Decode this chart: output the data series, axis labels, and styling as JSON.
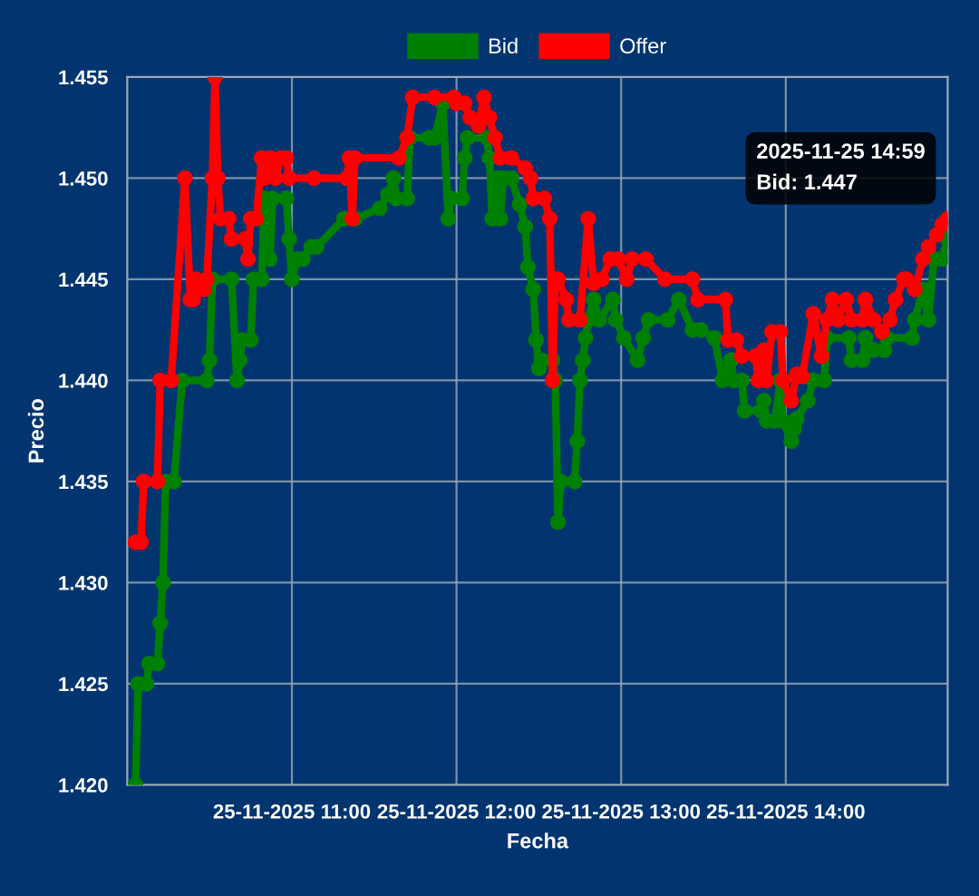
{
  "chart_data": {
    "type": "line",
    "xlabel": "Fecha",
    "ylabel": "Precio",
    "xlim": [
      "2025-11-25T10:00",
      "2025-11-25T14:59"
    ],
    "ylim": [
      1.42,
      1.455
    ],
    "xticks": [
      {
        "value": "2025-11-25T11:00",
        "label": "25-11-2025 11:00"
      },
      {
        "value": "2025-11-25T12:00",
        "label": "25-11-2025 12:00"
      },
      {
        "value": "2025-11-25T13:00",
        "label": "25-11-2025 13:00"
      },
      {
        "value": "2025-11-25T14:00",
        "label": "25-11-2025 14:00"
      }
    ],
    "yticks": [
      {
        "value": 1.42,
        "label": "1.420"
      },
      {
        "value": 1.425,
        "label": "1.425"
      },
      {
        "value": 1.43,
        "label": "1.430"
      },
      {
        "value": 1.435,
        "label": "1.435"
      },
      {
        "value": 1.44,
        "label": "1.440"
      },
      {
        "value": 1.445,
        "label": "1.445"
      },
      {
        "value": 1.45,
        "label": "1.450"
      },
      {
        "value": 1.455,
        "label": "1.455"
      }
    ],
    "grid": true,
    "legend": "top",
    "marker": "circle",
    "line_style": "solid",
    "annotations": [
      {
        "text": "2025-11-25 14:59\nBid: 1.447",
        "x": "2025-11-25T14:59",
        "y": 1.447
      }
    ],
    "series": [
      {
        "name": "Bid",
        "color": "#008000",
        "x": [
          "2025-11-25T10:03",
          "2025-11-25T10:04",
          "2025-11-25T10:07",
          "2025-11-25T10:08",
          "2025-11-25T10:11",
          "2025-11-25T10:12",
          "2025-11-25T10:13",
          "2025-11-25T10:14",
          "2025-11-25T10:17",
          "2025-11-25T10:20",
          "2025-11-25T10:29",
          "2025-11-25T10:30",
          "2025-11-25T10:31",
          "2025-11-25T10:38",
          "2025-11-25T10:40",
          "2025-11-25T10:41",
          "2025-11-25T10:42",
          "2025-11-25T10:45",
          "2025-11-25T10:46",
          "2025-11-25T10:49",
          "2025-11-25T10:50",
          "2025-11-25T10:52",
          "2025-11-25T10:53",
          "2025-11-25T10:58",
          "2025-11-25T10:59",
          "2025-11-25T11:00",
          "2025-11-25T11:02",
          "2025-11-25T11:04",
          "2025-11-25T11:07",
          "2025-11-25T11:09",
          "2025-11-25T11:19",
          "2025-11-25T11:23",
          "2025-11-25T11:32",
          "2025-11-25T11:35",
          "2025-11-25T11:37",
          "2025-11-25T11:38",
          "2025-11-25T11:42",
          "2025-11-25T11:43",
          "2025-11-25T11:50",
          "2025-11-25T11:52",
          "2025-11-25T11:55",
          "2025-11-25T11:57",
          "2025-11-25T11:58",
          "2025-11-25T12:02",
          "2025-11-25T12:03",
          "2025-11-25T12:04",
          "2025-11-25T12:11",
          "2025-11-25T12:12",
          "2025-11-25T12:13",
          "2025-11-25T12:15",
          "2025-11-25T12:16",
          "2025-11-25T12:17",
          "2025-11-25T12:20",
          "2025-11-25T12:23",
          "2025-11-25T12:25",
          "2025-11-25T12:26",
          "2025-11-25T12:28",
          "2025-11-25T12:29",
          "2025-11-25T12:30",
          "2025-11-25T12:31",
          "2025-11-25T12:35",
          "2025-11-25T12:36",
          "2025-11-25T12:37",
          "2025-11-25T12:38",
          "2025-11-25T12:43",
          "2025-11-25T12:44",
          "2025-11-25T12:45",
          "2025-11-25T12:46",
          "2025-11-25T12:47",
          "2025-11-25T12:48",
          "2025-11-25T12:50",
          "2025-11-25T12:52",
          "2025-11-25T12:57",
          "2025-11-25T12:58",
          "2025-11-25T13:01",
          "2025-11-25T13:06",
          "2025-11-25T13:08",
          "2025-11-25T13:10",
          "2025-11-25T13:17",
          "2025-11-25T13:21",
          "2025-11-25T13:26",
          "2025-11-25T13:29",
          "2025-11-25T13:34",
          "2025-11-25T13:37",
          "2025-11-25T13:40",
          "2025-11-25T13:41",
          "2025-11-25T13:44",
          "2025-11-25T13:45",
          "2025-11-25T13:51",
          "2025-11-25T13:52",
          "2025-11-25T13:53",
          "2025-11-25T13:56",
          "2025-11-25T13:58",
          "2025-11-25T13:59",
          "2025-11-25T14:02",
          "2025-11-25T14:03",
          "2025-11-25T14:04",
          "2025-11-25T14:08",
          "2025-11-25T14:10",
          "2025-11-25T14:14",
          "2025-11-25T14:15",
          "2025-11-25T14:23",
          "2025-11-25T14:24",
          "2025-11-25T14:28",
          "2025-11-25T14:29",
          "2025-11-25T14:32",
          "2025-11-25T14:36",
          "2025-11-25T14:37",
          "2025-11-25T14:46",
          "2025-11-25T14:47",
          "2025-11-25T14:50",
          "2025-11-25T14:52",
          "2025-11-25T14:54",
          "2025-11-25T14:57",
          "2025-11-25T14:59"
        ],
        "values": [
          1.42,
          1.425,
          1.425,
          1.426,
          1.426,
          1.428,
          1.43,
          1.435,
          1.435,
          1.44,
          1.44,
          1.441,
          1.445,
          1.445,
          1.44,
          1.441,
          1.442,
          1.442,
          1.445,
          1.445,
          1.449,
          1.446,
          1.449,
          1.449,
          1.447,
          1.445,
          1.446,
          1.446,
          1.4466,
          1.4466,
          1.448,
          1.448,
          1.4485,
          1.4492,
          1.45,
          1.449,
          1.449,
          1.452,
          1.452,
          1.452,
          1.4537,
          1.448,
          1.449,
          1.449,
          1.451,
          1.452,
          1.452,
          1.451,
          1.448,
          1.45,
          1.448,
          1.45,
          1.45,
          1.4487,
          1.4476,
          1.4456,
          1.4445,
          1.442,
          1.4406,
          1.441,
          1.441,
          1.44,
          1.433,
          1.435,
          1.435,
          1.437,
          1.44,
          1.441,
          1.4421,
          1.443,
          1.444,
          1.443,
          1.444,
          1.443,
          1.4421,
          1.441,
          1.4421,
          1.443,
          1.443,
          1.444,
          1.4425,
          1.4425,
          1.4421,
          1.44,
          1.441,
          1.44,
          1.44,
          1.4385,
          1.4385,
          1.439,
          1.438,
          1.438,
          1.44,
          1.438,
          1.437,
          1.4376,
          1.4381,
          1.439,
          1.44,
          1.44,
          1.4421,
          1.4421,
          1.441,
          1.441,
          1.4421,
          1.4415,
          1.4415,
          1.4421,
          1.4421,
          1.443,
          1.4445,
          1.443,
          1.446,
          1.446,
          1.447
        ]
      },
      {
        "name": "Offer",
        "color": "#ff0000",
        "x": [
          "2025-11-25T10:03",
          "2025-11-25T10:05",
          "2025-11-25T10:06",
          "2025-11-25T10:11",
          "2025-11-25T10:12",
          "2025-11-25T10:16",
          "2025-11-25T10:21",
          "2025-11-25T10:23",
          "2025-11-25T10:24",
          "2025-11-25T10:25",
          "2025-11-25T10:26",
          "2025-11-25T10:28",
          "2025-11-25T10:29",
          "2025-11-25T10:31",
          "2025-11-25T10:32",
          "2025-11-25T10:33",
          "2025-11-25T10:34",
          "2025-11-25T10:37",
          "2025-11-25T10:38",
          "2025-11-25T10:43",
          "2025-11-25T10:44",
          "2025-11-25T10:45",
          "2025-11-25T10:47",
          "2025-11-25T10:49",
          "2025-11-25T10:50",
          "2025-11-25T10:52",
          "2025-11-25T10:54",
          "2025-11-25T10:56",
          "2025-11-25T10:58",
          "2025-11-25T10:59",
          "2025-11-25T11:08",
          "2025-11-25T11:20",
          "2025-11-25T11:21",
          "2025-11-25T11:22",
          "2025-11-25T11:23",
          "2025-11-25T11:39",
          "2025-11-25T11:42",
          "2025-11-25T11:44",
          "2025-11-25T11:52",
          "2025-11-25T11:59",
          "2025-11-25T12:00",
          "2025-11-25T12:03",
          "2025-11-25T12:05",
          "2025-11-25T12:08",
          "2025-11-25T12:10",
          "2025-11-25T12:12",
          "2025-11-25T12:14",
          "2025-11-25T12:16",
          "2025-11-25T12:20",
          "2025-11-25T12:25",
          "2025-11-25T12:27",
          "2025-11-25T12:28",
          "2025-11-25T12:32",
          "2025-11-25T12:34",
          "2025-11-25T12:35",
          "2025-11-25T12:36",
          "2025-11-25T12:37",
          "2025-11-25T12:40",
          "2025-11-25T12:41",
          "2025-11-25T12:45",
          "2025-11-25T12:48",
          "2025-11-25T12:50",
          "2025-11-25T12:53",
          "2025-11-25T12:56",
          "2025-11-25T12:59",
          "2025-11-25T13:02",
          "2025-11-25T13:04",
          "2025-11-25T13:09",
          "2025-11-25T13:16",
          "2025-11-25T13:26",
          "2025-11-25T13:28",
          "2025-11-25T13:38",
          "2025-11-25T13:39",
          "2025-11-25T13:42",
          "2025-11-25T13:44",
          "2025-11-25T13:49",
          "2025-11-25T13:50",
          "2025-11-25T13:52",
          "2025-11-25T13:53",
          "2025-11-25T13:55",
          "2025-11-25T13:58",
          "2025-11-25T13:59",
          "2025-11-25T14:02",
          "2025-11-25T14:04",
          "2025-11-25T14:06",
          "2025-11-25T14:10",
          "2025-11-25T14:13",
          "2025-11-25T14:15",
          "2025-11-25T14:17",
          "2025-11-25T14:19",
          "2025-11-25T14:22",
          "2025-11-25T14:24",
          "2025-11-25T14:28",
          "2025-11-25T14:29",
          "2025-11-25T14:32",
          "2025-11-25T14:35",
          "2025-11-25T14:38",
          "2025-11-25T14:40",
          "2025-11-25T14:43",
          "2025-11-25T14:44",
          "2025-11-25T14:47",
          "2025-11-25T14:50",
          "2025-11-25T14:52",
          "2025-11-25T14:55",
          "2025-11-25T14:57",
          "2025-11-25T14:59"
        ],
        "values": [
          1.432,
          1.432,
          1.435,
          1.435,
          1.44,
          1.44,
          1.45,
          1.444,
          1.444,
          1.445,
          1.4447,
          1.4445,
          1.445,
          1.45,
          1.455,
          1.45,
          1.448,
          1.448,
          1.447,
          1.447,
          1.446,
          1.448,
          1.448,
          1.451,
          1.45,
          1.451,
          1.45,
          1.451,
          1.451,
          1.45,
          1.45,
          1.45,
          1.451,
          1.448,
          1.451,
          1.451,
          1.452,
          1.454,
          1.454,
          1.454,
          1.4537,
          1.4537,
          1.453,
          1.4526,
          1.454,
          1.453,
          1.452,
          1.451,
          1.451,
          1.4505,
          1.45,
          1.449,
          1.449,
          1.448,
          1.44,
          1.445,
          1.445,
          1.444,
          1.443,
          1.443,
          1.448,
          1.4448,
          1.445,
          1.446,
          1.446,
          1.445,
          1.446,
          1.446,
          1.445,
          1.445,
          1.444,
          1.444,
          1.442,
          1.442,
          1.4412,
          1.4412,
          1.44,
          1.4415,
          1.44,
          1.4424,
          1.4424,
          1.44,
          1.439,
          1.4403,
          1.4402,
          1.4433,
          1.4412,
          1.443,
          1.444,
          1.443,
          1.444,
          1.443,
          1.443,
          1.444,
          1.443,
          1.4424,
          1.443,
          1.444,
          1.445,
          1.445,
          1.4445,
          1.446,
          1.4466,
          1.4472,
          1.4477,
          1.448
        ]
      }
    ]
  }
}
